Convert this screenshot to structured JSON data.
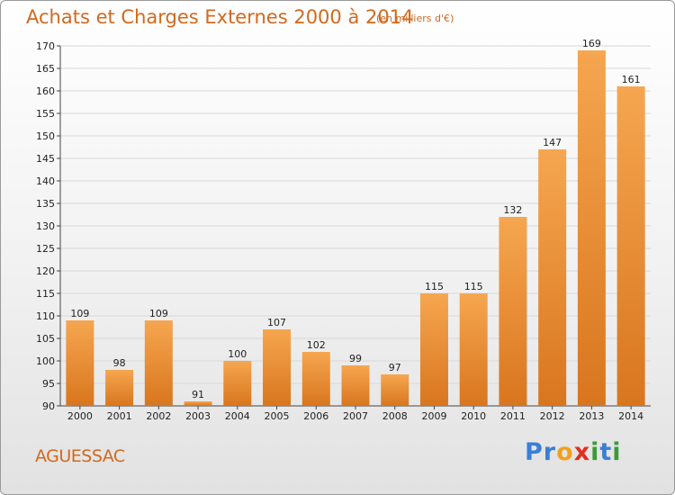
{
  "title": "Achats et Charges Externes 2000 à 2014",
  "subtitle": "(en milliers d'€)",
  "place": "AGUESSAC",
  "brand": {
    "text": "Proxiti",
    "letters": [
      {
        "ch": "P",
        "color": "#3a7fd5"
      },
      {
        "ch": "r",
        "color": "#3a7fd5"
      },
      {
        "ch": "o",
        "color": "#f0a020"
      },
      {
        "ch": "x",
        "color": "#e03020"
      },
      {
        "ch": "i",
        "color": "#3a9a3a"
      },
      {
        "ch": "t",
        "color": "#3a7fd5"
      },
      {
        "ch": "i",
        "color": "#3a9a3a"
      }
    ]
  },
  "colors": {
    "bar_light": "#f6a650",
    "bar_dark": "#d8761e",
    "title": "#d2691e",
    "grid": "#d8d8d8"
  },
  "chart_data": {
    "type": "bar",
    "title": "Achats et Charges Externes 2000 à 2014",
    "subtitle": "(en milliers d'€)",
    "xlabel": "",
    "ylabel": "",
    "categories": [
      "2000",
      "2001",
      "2002",
      "2003",
      "2004",
      "2005",
      "2006",
      "2007",
      "2008",
      "2009",
      "2010",
      "2011",
      "2012",
      "2013",
      "2014"
    ],
    "values": [
      109,
      98,
      109,
      91,
      100,
      107,
      102,
      99,
      97,
      115,
      115,
      132,
      147,
      169,
      161
    ],
    "ylim": [
      90,
      170
    ],
    "yticks": [
      90,
      95,
      100,
      105,
      110,
      115,
      120,
      125,
      130,
      135,
      140,
      145,
      150,
      155,
      160,
      165,
      170
    ],
    "grid": true,
    "data_labels": true
  }
}
